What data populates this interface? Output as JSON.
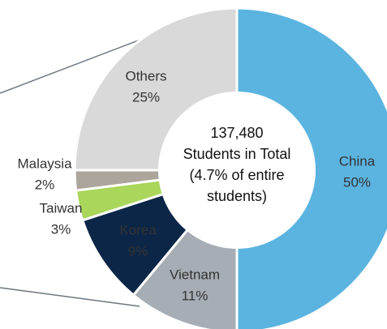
{
  "chart_data": {
    "type": "donut",
    "annotations": [
      "137,480",
      "Students in Total",
      "(4.7% of entire",
      "students)"
    ],
    "categories": [
      "China",
      "Vietnam",
      "Korea",
      "Taiwan",
      "Malaysia",
      "Others"
    ],
    "values": [
      50,
      11,
      9,
      3,
      2,
      25
    ],
    "value_labels": [
      "50%",
      "11%",
      "9%",
      "3%",
      "2%",
      "25%"
    ],
    "colors": [
      "#5bb4e0",
      "#a6adb4",
      "#0c2647",
      "#a9d65b",
      "#aba59c",
      "#d9d9d9"
    ]
  }
}
